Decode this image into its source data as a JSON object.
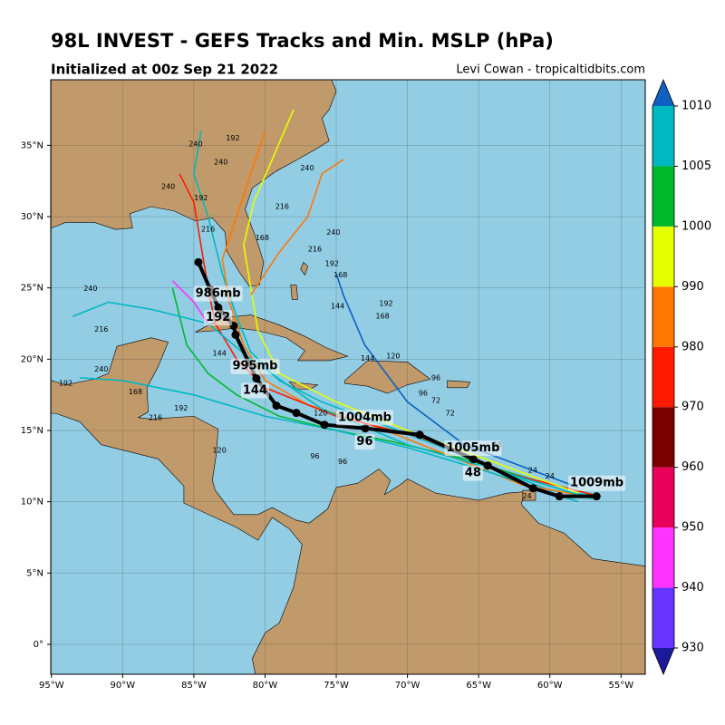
{
  "map": {
    "title": "98L INVEST - GEFS Tracks and Min. MSLP (hPa)",
    "subtitle": "Initialized at 00z Sep 21 2022",
    "credit": "Levi Cowan - tropicaltidbits.com",
    "lonlim": [
      -95.05,
      -53.3
    ],
    "latlim": [
      -2.1,
      39.6
    ],
    "lonticks": [
      {
        "value": -95,
        "label": "95°W"
      },
      {
        "value": -90,
        "label": "90°W"
      },
      {
        "value": -85,
        "label": "85°W"
      },
      {
        "value": -80,
        "label": "80°W"
      },
      {
        "value": -75,
        "label": "75°W"
      },
      {
        "value": -70,
        "label": "70°W"
      },
      {
        "value": -65,
        "label": "65°W"
      },
      {
        "value": -60,
        "label": "60°W"
      },
      {
        "value": -55,
        "label": "55°W"
      }
    ],
    "latticks": [
      {
        "value": 0,
        "label": "0°"
      },
      {
        "value": 5,
        "label": "5°N"
      },
      {
        "value": 10,
        "label": "10°N"
      },
      {
        "value": 15,
        "label": "15°N"
      },
      {
        "value": 20,
        "label": "20°N"
      },
      {
        "value": 25,
        "label": "25°N"
      },
      {
        "value": 30,
        "label": "30°N"
      },
      {
        "value": 35,
        "label": "35°N"
      }
    ],
    "members": [
      {
        "color": "#00b8c0",
        "lons": [
          -56.5,
          -60,
          -64,
          -68,
          -72,
          -76,
          -79,
          -81,
          -82,
          -83,
          -84,
          -85,
          -84.5
        ],
        "lats": [
          10.4,
          10.8,
          12.4,
          14,
          15.5,
          17,
          18.5,
          20.5,
          23,
          26,
          30,
          33,
          36
        ]
      },
      {
        "color": "#00b82c",
        "lons": [
          -56.5,
          -61,
          -66,
          -71,
          -75,
          -79,
          -82,
          -84,
          -85.5,
          -86,
          -86.5
        ],
        "lats": [
          10.4,
          11.5,
          13,
          14.2,
          15,
          16,
          17.5,
          19,
          21,
          23,
          25
        ]
      },
      {
        "color": "#ff7700",
        "lons": [
          -57,
          -62,
          -67,
          -72,
          -77,
          -80,
          -81.5,
          -82.5,
          -83,
          -82,
          -81,
          -80
        ],
        "lats": [
          10.3,
          11.2,
          13.2,
          15.2,
          16.8,
          18.5,
          21,
          24,
          27,
          30,
          33,
          36
        ]
      },
      {
        "color": "#ff1a00",
        "lons": [
          -57,
          -63,
          -69,
          -75,
          -80,
          -82,
          -83.5,
          -84,
          -84.5,
          -85,
          -86
        ],
        "lats": [
          10.5,
          12,
          14.5,
          16,
          18,
          20,
          22.5,
          25,
          28,
          31,
          33
        ]
      },
      {
        "color": "#e6ff00",
        "lons": [
          -58,
          -64,
          -70,
          -75,
          -79,
          -80.5,
          -81,
          -81.5,
          -80.8,
          -79.5,
          -78
        ],
        "lats": [
          10.6,
          12.8,
          15,
          17,
          19,
          22,
          25,
          28,
          31,
          34,
          37.5
        ]
      },
      {
        "color": "#00b8c0",
        "lons": [
          -58,
          -64,
          -70,
          -75,
          -80,
          -85,
          -90,
          -93
        ],
        "lats": [
          10,
          12,
          13.8,
          15,
          16,
          17.5,
          18.5,
          18.7
        ]
      },
      {
        "color": "#1060c0",
        "lons": [
          -58,
          -62,
          -66,
          -70,
          -73,
          -74.5,
          -75
        ],
        "lats": [
          11,
          12.5,
          14,
          17,
          21,
          24.5,
          26
        ]
      },
      {
        "color": "#00b8c0",
        "lons": [
          -57,
          -63,
          -70,
          -76,
          -81,
          -84,
          -88,
          -91,
          -93.5
        ],
        "lats": [
          10.2,
          12,
          14,
          16.5,
          20,
          22.5,
          23.5,
          24,
          23
        ]
      },
      {
        "color": "#ff33ff",
        "lons": [
          -84,
          -85,
          -86.5
        ],
        "lats": [
          22.5,
          24,
          25.5
        ]
      },
      {
        "color": "#ff7700",
        "lons": [
          -81,
          -79,
          -77,
          -76,
          -74.5
        ],
        "lats": [
          24.5,
          27.5,
          30,
          33,
          34
        ]
      }
    ],
    "mean_track": {
      "color": "#000000",
      "lons": [
        -56.72,
        -59.33,
        -61.18,
        -64.36,
        -65.38,
        -69.14,
        -72.96,
        -75.83,
        -77.8,
        -79.2,
        -80.61,
        -82.07,
        -82.2,
        -83.28,
        -83.85,
        -84.68
      ],
      "lats": [
        10.38,
        10.38,
        10.95,
        12.54,
        12.99,
        14.7,
        15.15,
        15.4,
        16.23,
        16.74,
        18.65,
        21.71,
        22.34,
        23.62,
        24.89,
        26.8
      ]
    },
    "track_labels": [
      {
        "text": "986mb",
        "lon": -83.3,
        "lat": 24.6
      },
      {
        "text": "192",
        "lon": -83.3,
        "lat": 22.9
      },
      {
        "text": "995mb",
        "lon": -80.7,
        "lat": 19.5
      },
      {
        "text": "144",
        "lon": -80.7,
        "lat": 17.8
      },
      {
        "text": "1004mb",
        "lon": -73,
        "lat": 15.9
      },
      {
        "text": "96",
        "lon": -73,
        "lat": 14.2
      },
      {
        "text": "1005mb",
        "lon": -65.4,
        "lat": 13.75
      },
      {
        "text": "48",
        "lon": -65.4,
        "lat": 12.0
      },
      {
        "text": "1009mb",
        "lon": -56.7,
        "lat": 11.3
      }
    ],
    "hour_labels": [
      {
        "text": "240",
        "lon": -84.87,
        "lat": 35.1
      },
      {
        "text": "192",
        "lon": -82.26,
        "lat": 35.5
      },
      {
        "text": "240",
        "lon": -77.04,
        "lat": 33.4
      },
      {
        "text": "216",
        "lon": -78.8,
        "lat": 30.7
      },
      {
        "text": "240",
        "lon": -75.2,
        "lat": 28.9
      },
      {
        "text": "216",
        "lon": -76.5,
        "lat": 27.7
      },
      {
        "text": "192",
        "lon": -75.3,
        "lat": 26.7
      },
      {
        "text": "168",
        "lon": -74.7,
        "lat": 25.9
      },
      {
        "text": "144",
        "lon": -74.9,
        "lat": 23.7
      },
      {
        "text": "168",
        "lon": -71.75,
        "lat": 23.0
      },
      {
        "text": "192",
        "lon": -71.5,
        "lat": 23.9
      },
      {
        "text": "120",
        "lon": -71.0,
        "lat": 20.2
      },
      {
        "text": "144",
        "lon": -72.8,
        "lat": 20.05
      },
      {
        "text": "96",
        "lon": -68.0,
        "lat": 18.7
      },
      {
        "text": "96",
        "lon": -68.9,
        "lat": 17.6
      },
      {
        "text": "72",
        "lon": -68.0,
        "lat": 17.1
      },
      {
        "text": "72",
        "lon": -67.0,
        "lat": 16.2
      },
      {
        "text": "48",
        "lon": -63.7,
        "lat": 14.0
      },
      {
        "text": "24",
        "lon": -61.2,
        "lat": 12.2
      },
      {
        "text": "24",
        "lon": -60.0,
        "lat": 11.8
      },
      {
        "text": "24",
        "lon": -61.6,
        "lat": 10.4
      },
      {
        "text": "240",
        "lon": -92.26,
        "lat": 24.95
      },
      {
        "text": "216",
        "lon": -91.5,
        "lat": 22.1
      },
      {
        "text": "240",
        "lon": -91.5,
        "lat": 19.3
      },
      {
        "text": "192",
        "lon": -94.0,
        "lat": 18.3
      },
      {
        "text": "168",
        "lon": -89.1,
        "lat": 17.7
      },
      {
        "text": "216",
        "lon": -87.7,
        "lat": 15.9
      },
      {
        "text": "192",
        "lon": -85.9,
        "lat": 16.55
      },
      {
        "text": "120",
        "lon": -83.2,
        "lat": 13.6
      },
      {
        "text": "96",
        "lon": -76.5,
        "lat": 13.2
      },
      {
        "text": "120",
        "lon": -76.1,
        "lat": 16.2
      },
      {
        "text": "96",
        "lon": -74.55,
        "lat": 12.8
      },
      {
        "text": "240",
        "lon": -86.8,
        "lat": 32.1
      },
      {
        "text": "240",
        "lon": -83.1,
        "lat": 33.8
      },
      {
        "text": "216",
        "lon": -84.0,
        "lat": 29.1
      },
      {
        "text": "192",
        "lon": -84.5,
        "lat": 31.3
      },
      {
        "text": "168",
        "lon": -80.2,
        "lat": 28.5
      },
      {
        "text": "144",
        "lon": -83.2,
        "lat": 20.4
      }
    ],
    "colorbar": {
      "ticks": [
        930,
        940,
        950,
        960,
        970,
        980,
        990,
        1000,
        1005,
        1010
      ],
      "colors": [
        "#6633ff",
        "#ff33ff",
        "#e8005a",
        "#7a0000",
        "#ff1a00",
        "#ff7700",
        "#e6ff00",
        "#00b82c",
        "#00b8c0"
      ],
      "under": "#1a1a9a",
      "over": "#1060c0"
    }
  }
}
